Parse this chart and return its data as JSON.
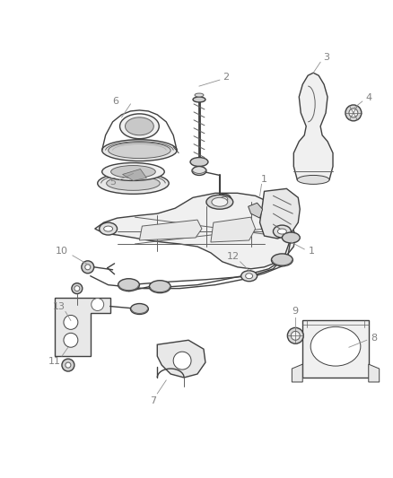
{
  "bg_color": "#ffffff",
  "line_color": "#404040",
  "label_color": "#808080",
  "fig_width": 4.38,
  "fig_height": 5.33,
  "dpi": 100
}
